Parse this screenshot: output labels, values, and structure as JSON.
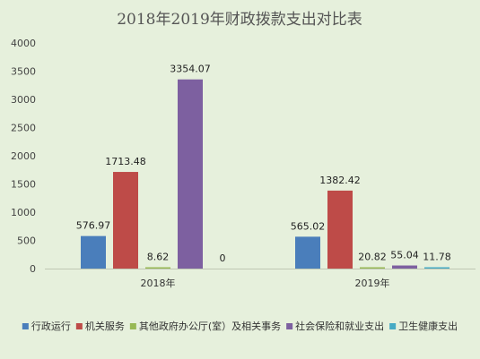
{
  "chart_data": {
    "type": "bar",
    "title": "2018年2019年财政拨款支出对比表",
    "categories": [
      "2018年",
      "2019年"
    ],
    "series": [
      {
        "name": "行政运行",
        "color": "#4a7ebb",
        "values": [
          576.97,
          565.02
        ],
        "labels": [
          "576.97",
          "565.02"
        ]
      },
      {
        "name": "机关服务",
        "color": "#be4b48",
        "values": [
          1713.48,
          1382.42
        ],
        "labels": [
          "1713.48",
          "1382.42"
        ]
      },
      {
        "name": "其他政府办公厅(室）及相关事务",
        "color": "#98b954",
        "values": [
          8.62,
          20.82
        ],
        "labels": [
          "8.62",
          "20.82"
        ]
      },
      {
        "name": "社会保险和就业支出",
        "color": "#7d60a0",
        "values": [
          3354.07,
          55.04
        ],
        "labels": [
          "3354.07",
          "55.04"
        ]
      },
      {
        "name": "卫生健康支出",
        "color": "#46aac4",
        "values": [
          0,
          11.78
        ],
        "labels": [
          "0",
          "11.78"
        ]
      }
    ],
    "yticks": [
      "0",
      "500",
      "1000",
      "1500",
      "2000",
      "2500",
      "3000",
      "3500",
      "4000"
    ],
    "ylim": [
      0,
      4000
    ],
    "grid": false,
    "legend_position": "bottom"
  }
}
